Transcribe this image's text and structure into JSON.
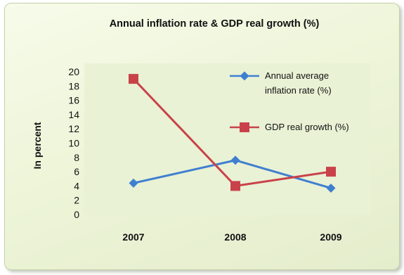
{
  "chart_data": {
    "type": "line",
    "title": "Annual inflation rate & GDP real growth (%)",
    "ylabel": "In percent",
    "xlabel": "",
    "categories": [
      "2007",
      "2008",
      "2009"
    ],
    "ylim": [
      0,
      20
    ],
    "yticks": [
      "0",
      "2",
      "4",
      "6",
      "8",
      "10",
      "12",
      "14",
      "16",
      "18",
      "20"
    ],
    "grid": false,
    "legend_position": "top-right",
    "series": [
      {
        "name": "Annual average inflation rate (%)",
        "legend_lines": [
          "Annual average",
          "inflation rate (%)"
        ],
        "values": [
          4.4,
          7.6,
          3.7
        ],
        "color": "#3f7fd0",
        "marker": "diamond"
      },
      {
        "name": "GDP real growth (%)",
        "legend_lines": [
          "GDP real growth (%)"
        ],
        "values": [
          19.0,
          4.0,
          6.0
        ],
        "color": "#c9424a",
        "marker": "square"
      }
    ]
  }
}
